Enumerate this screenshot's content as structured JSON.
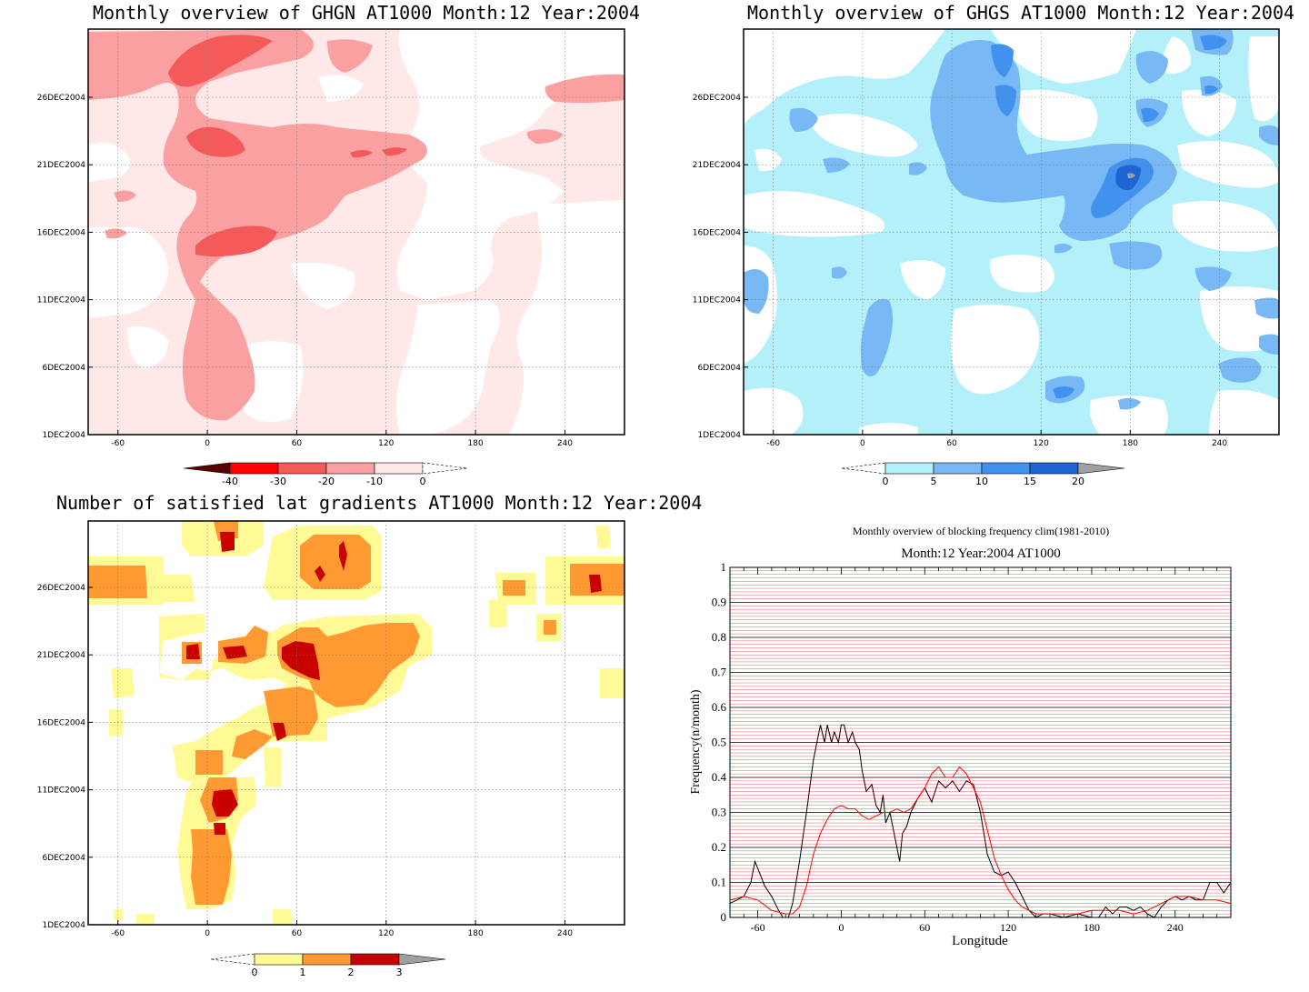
{
  "panels": {
    "ghgn": {
      "title": "Monthly overview of GHGN AT1000 Month:12 Year:2004",
      "xticks": [
        "-60",
        "0",
        "60",
        "120",
        "180",
        "240"
      ],
      "yticks": [
        "1DEC2004",
        "6DEC2004",
        "11DEC2004",
        "16DEC2004",
        "21DEC2004",
        "26DEC2004"
      ],
      "colorbar_labels": [
        "-40",
        "-30",
        "-20",
        "-10",
        "0"
      ],
      "colors": [
        "#5a0000",
        "#ff0000",
        "#f55a5a",
        "#fba0a0",
        "#ffe8e8"
      ]
    },
    "ghgs": {
      "title": "Monthly overview of GHGS AT1000 Month:12 Year:2004",
      "xticks": [
        "-60",
        "0",
        "60",
        "120",
        "180",
        "240"
      ],
      "yticks": [
        "1DEC2004",
        "6DEC2004",
        "11DEC2004",
        "16DEC2004",
        "21DEC2004",
        "26DEC2004"
      ],
      "colorbar_labels": [
        "0",
        "5",
        "10",
        "15",
        "20"
      ],
      "colors": [
        "#b4f0fa",
        "#78b9f5",
        "#4191ef",
        "#1e64d2",
        "#a0a0a0"
      ]
    },
    "gradients": {
      "title": "Number of satisfied lat gradients AT1000 Month:12 Year:2004",
      "xticks": [
        "-60",
        "0",
        "60",
        "120",
        "180",
        "240"
      ],
      "yticks": [
        "1DEC2004",
        "6DEC2004",
        "11DEC2004",
        "16DEC2004",
        "21DEC2004",
        "26DEC2004"
      ],
      "colorbar_labels": [
        "0",
        "1",
        "2",
        "3"
      ],
      "colors": [
        "#fffa96",
        "#ff9a32",
        "#c80000",
        "#a0a0a0"
      ]
    }
  },
  "chart_data": {
    "type": "line",
    "title": "Monthly overview of blocking frequency clim(1981-2010)",
    "subtitle": "Month:12 Year:2004  AT1000",
    "xlabel": "Longitude",
    "ylabel": "Frequency(n/month)",
    "xlim": [
      -80,
      280
    ],
    "ylim": [
      0,
      1
    ],
    "xticks": [
      "-60",
      "0",
      "60",
      "120",
      "180",
      "240"
    ],
    "yticks": [
      "0",
      "0.1",
      "0.2",
      "0.3",
      "0.4",
      "0.5",
      "0.6",
      "0.7",
      "0.8",
      "0.9",
      "1"
    ],
    "grid": true,
    "series": [
      {
        "color": "#000000",
        "x": [
          -80,
          -70,
          -65,
          -62,
          -58,
          -55,
          -50,
          -45,
          -42,
          -38,
          -35,
          -30,
          -25,
          -20,
          -15,
          -12,
          -10,
          -7,
          -5,
          -2,
          0,
          2,
          5,
          8,
          10,
          13,
          15,
          18,
          22,
          25,
          28,
          30,
          32,
          35,
          38,
          42,
          44,
          47,
          50,
          55,
          60,
          65,
          70,
          75,
          80,
          85,
          90,
          95,
          100,
          105,
          110,
          115,
          120,
          125,
          130,
          135,
          140,
          145,
          150,
          160,
          170,
          180,
          185,
          190,
          195,
          200,
          205,
          210,
          215,
          220,
          225,
          230,
          235,
          240,
          245,
          250,
          255,
          260,
          265,
          270,
          275,
          280
        ],
        "y": [
          0.04,
          0.06,
          0.1,
          0.16,
          0.12,
          0.09,
          0.06,
          0.02,
          0.0,
          0.0,
          0.04,
          0.16,
          0.3,
          0.45,
          0.55,
          0.5,
          0.55,
          0.5,
          0.53,
          0.5,
          0.55,
          0.55,
          0.5,
          0.53,
          0.5,
          0.48,
          0.42,
          0.36,
          0.38,
          0.32,
          0.3,
          0.35,
          0.27,
          0.3,
          0.24,
          0.16,
          0.24,
          0.26,
          0.3,
          0.34,
          0.37,
          0.33,
          0.39,
          0.37,
          0.39,
          0.36,
          0.39,
          0.38,
          0.3,
          0.18,
          0.13,
          0.12,
          0.13,
          0.1,
          0.06,
          0.02,
          0.0,
          0.01,
          0.01,
          0.0,
          0.01,
          0.0,
          0.0,
          0.03,
          0.01,
          0.03,
          0.03,
          0.02,
          0.03,
          0.01,
          0.0,
          0.03,
          0.05,
          0.06,
          0.05,
          0.06,
          0.05,
          0.05,
          0.1,
          0.1,
          0.07,
          0.1
        ]
      },
      {
        "color": "#ff0000",
        "x": [
          -80,
          -70,
          -60,
          -50,
          -40,
          -35,
          -30,
          -25,
          -20,
          -15,
          -10,
          -5,
          0,
          5,
          10,
          15,
          20,
          25,
          30,
          35,
          40,
          45,
          50,
          55,
          60,
          65,
          70,
          75,
          80,
          85,
          90,
          95,
          100,
          105,
          110,
          115,
          120,
          125,
          130,
          140,
          150,
          160,
          170,
          180,
          190,
          200,
          210,
          220,
          230,
          240,
          250,
          260,
          270,
          280
        ],
        "y": [
          0.05,
          0.06,
          0.05,
          0.02,
          0.01,
          0.01,
          0.03,
          0.09,
          0.18,
          0.24,
          0.28,
          0.31,
          0.32,
          0.31,
          0.31,
          0.29,
          0.28,
          0.29,
          0.3,
          0.3,
          0.31,
          0.3,
          0.31,
          0.34,
          0.37,
          0.41,
          0.43,
          0.4,
          0.4,
          0.43,
          0.41,
          0.37,
          0.33,
          0.25,
          0.17,
          0.12,
          0.08,
          0.05,
          0.03,
          0.01,
          0.01,
          0.01,
          0.01,
          0.02,
          0.02,
          0.02,
          0.01,
          0.02,
          0.04,
          0.06,
          0.06,
          0.05,
          0.05,
          0.04
        ]
      }
    ]
  }
}
